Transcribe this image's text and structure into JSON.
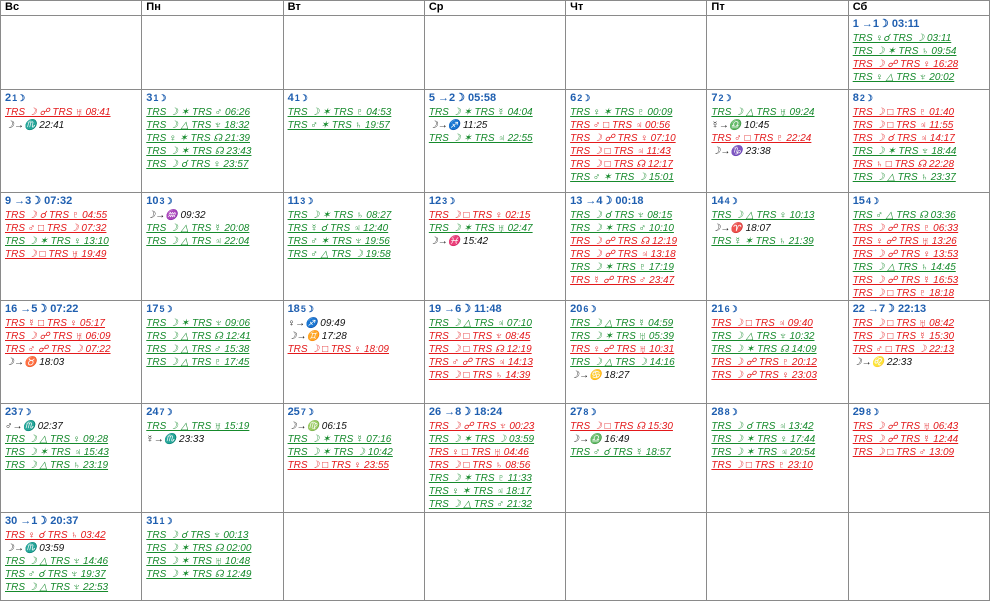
{
  "colors": {
    "red": "#e3191b",
    "green": "#168a2c",
    "blue": "#1f5fb0",
    "black": "#111111"
  },
  "weekdays": [
    "Вс",
    "Пн",
    "Вт",
    "Ср",
    "Чт",
    "Пт",
    "Сб"
  ],
  "weeks": [
    [
      null,
      null,
      null,
      null,
      null,
      null,
      {
        "day": "1",
        "ingress": "→1☽ 03:11",
        "events": [
          {
            "text": "TRS ♀☌ TRS ☽ 03:11",
            "color": "green"
          },
          {
            "text": "TRS ☽ ✶ TRS ♄ 09:54",
            "color": "green"
          },
          {
            "text": "TRS ☽ ☍ TRS ♀ 16:28",
            "color": "red"
          },
          {
            "text": "TRS ♀ △ TRS ♆ 20:02",
            "color": "green"
          }
        ]
      }
    ],
    [
      {
        "day": "2",
        "phase": "1☽",
        "events": [
          {
            "text": "TRS ☽ ☍ TRS ♅ 08:41",
            "color": "red"
          },
          {
            "text": "☽→♏ 22:41",
            "color": "black"
          }
        ]
      },
      {
        "day": "3",
        "phase": "1☽",
        "events": [
          {
            "text": "TRS ☽ ✶ TRS ♂ 06:26",
            "color": "green"
          },
          {
            "text": "TRS ☽ △ TRS ♆ 18:32",
            "color": "green"
          },
          {
            "text": "TRS ♀ ✶ TRS ☊ 21:39",
            "color": "green"
          },
          {
            "text": "TRS ☽ ✶ TRS ☊ 23:43",
            "color": "green"
          },
          {
            "text": "TRS ☽ ☌ TRS ♀ 23:57",
            "color": "green"
          }
        ]
      },
      {
        "day": "4",
        "phase": "1☽",
        "events": [
          {
            "text": "TRS ☽ ✶ TRS ♇ 04:53",
            "color": "green"
          },
          {
            "text": "TRS ♂ ✶ TRS ♄ 19:57",
            "color": "green"
          }
        ]
      },
      {
        "day": "5",
        "ingress": "→2☽ 05:58",
        "events": [
          {
            "text": "TRS ☽ ✶ TRS ☿ 04:04",
            "color": "green"
          },
          {
            "text": "☽→♐ 11:25",
            "color": "black"
          },
          {
            "text": "TRS ☽ ✶ TRS ♃ 22:55",
            "color": "green"
          }
        ]
      },
      {
        "day": "6",
        "phase": "2☽",
        "events": [
          {
            "text": "TRS ♀ ✶ TRS ♇ 00:09",
            "color": "green"
          },
          {
            "text": "TRS ♂ □ TRS ♃ 00:56",
            "color": "red"
          },
          {
            "text": "TRS ☽ ☍ TRS ♀ 07:10",
            "color": "red"
          },
          {
            "text": "TRS ☽ □ TRS ♃ 11:43",
            "color": "red"
          },
          {
            "text": "TRS ☽ □ TRS ☊ 12:17",
            "color": "red"
          },
          {
            "text": "TRS ♂ ✶ TRS ☽ 15:01",
            "color": "green"
          }
        ]
      },
      {
        "day": "7",
        "phase": "2☽",
        "events": [
          {
            "text": "TRS ☽ △ TRS ♅ 09:24",
            "color": "green"
          },
          {
            "text": "☿→♎ 10:45",
            "color": "black"
          },
          {
            "text": "TRS ♂ □ TRS ♇ 22:24",
            "color": "red"
          },
          {
            "text": "☽→♑ 23:38",
            "color": "black"
          }
        ]
      },
      {
        "day": "8",
        "phase": "2☽",
        "events": [
          {
            "text": "TRS ☽ □ TRS ♇ 01:40",
            "color": "red"
          },
          {
            "text": "TRS ☽ □ TRS ♃ 11:55",
            "color": "red"
          },
          {
            "text": "TRS ☽ ☌ TRS ♃ 14:17",
            "color": "red"
          },
          {
            "text": "TRS ☽ ✶ TRS ♆ 18:44",
            "color": "green"
          },
          {
            "text": "TRS ♄ □ TRS ☊ 22:28",
            "color": "red"
          },
          {
            "text": "TRS ☽ △ TRS ♄ 23:37",
            "color": "green"
          }
        ]
      }
    ],
    [
      {
        "day": "9",
        "ingress": "→3☽ 07:32",
        "events": [
          {
            "text": "TRS ☽ ☌ TRS ♇ 04:55",
            "color": "red"
          },
          {
            "text": "TRS ♂ □ TRS ☽ 07:32",
            "color": "red"
          },
          {
            "text": "TRS ☽ ✶ TRS ♀ 13:10",
            "color": "green"
          },
          {
            "text": "TRS ☽ □ TRS ♅ 19:49",
            "color": "red"
          }
        ]
      },
      {
        "day": "10",
        "phase": "3☽",
        "events": [
          {
            "text": "☽→♒ 09:32",
            "color": "black"
          },
          {
            "text": "TRS ☽ △ TRS ☿ 20:08",
            "color": "green"
          },
          {
            "text": "TRS ☽ △ TRS ♃ 22:04",
            "color": "green"
          }
        ]
      },
      {
        "day": "11",
        "phase": "3☽",
        "events": [
          {
            "text": "TRS ☽ ✶ TRS ♄ 08:27",
            "color": "green"
          },
          {
            "text": "TRS ☿ ☌ TRS ♃ 12:40",
            "color": "green"
          },
          {
            "text": "TRS ♂ ✶ TRS ♆ 19:56",
            "color": "green"
          },
          {
            "text": "TRS ♂ △ TRS ☽ 19:58",
            "color": "green"
          }
        ]
      },
      {
        "day": "12",
        "phase": "3☽",
        "events": [
          {
            "text": "TRS ☽ □ TRS ♀ 02:15",
            "color": "red"
          },
          {
            "text": "TRS ☽ ✶ TRS ♅ 02:47",
            "color": "green"
          },
          {
            "text": "☽→♓ 15:42",
            "color": "black"
          }
        ]
      },
      {
        "day": "13",
        "ingress": "→4☽ 00:18",
        "events": [
          {
            "text": "TRS ☽ ☌ TRS ♆ 08:15",
            "color": "green"
          },
          {
            "text": "TRS ☽ ✶ TRS ♂ 10:10",
            "color": "green"
          },
          {
            "text": "TRS ☽ ☍ TRS ☊ 12:19",
            "color": "red"
          },
          {
            "text": "TRS ☽ ☍ TRS ♃ 13:18",
            "color": "red"
          },
          {
            "text": "TRS ☽ ✶ TRS ♇ 17:19",
            "color": "green"
          },
          {
            "text": "TRS ☿ ☍ TRS ♂ 23:47",
            "color": "red"
          }
        ]
      },
      {
        "day": "14",
        "phase": "4☽",
        "events": [
          {
            "text": "TRS ☽ △ TRS ♀ 10:13",
            "color": "green"
          },
          {
            "text": "☽→♈ 18:07",
            "color": "black"
          },
          {
            "text": "TRS ☿ ✶ TRS ♄ 21:39",
            "color": "green"
          }
        ]
      },
      {
        "day": "15",
        "phase": "4☽",
        "events": [
          {
            "text": "TRS ♂ △ TRS ☊ 03:36",
            "color": "green"
          },
          {
            "text": "TRS ☽ ☍ TRS ♇ 06:33",
            "color": "red"
          },
          {
            "text": "TRS ♀ ☍ TRS ♅ 13:26",
            "color": "red"
          },
          {
            "text": "TRS ☽ ☍ TRS ♀ 13:53",
            "color": "red"
          },
          {
            "text": "TRS ☽ △ TRS ♄ 14:45",
            "color": "green"
          },
          {
            "text": "TRS ☽ ☍ TRS ☿ 16:53",
            "color": "red"
          },
          {
            "text": "TRS ☽ □ TRS ♇ 18:18",
            "color": "red"
          }
        ]
      }
    ],
    [
      {
        "day": "16",
        "ingress": "→5☽ 07:22",
        "events": [
          {
            "text": "TRS ☿ □ TRS ♀ 05:17",
            "color": "red"
          },
          {
            "text": "TRS ☽ ☍ TRS ♅ 06:09",
            "color": "red"
          },
          {
            "text": "TRS ♂ ☍ TRS ☽ 07:22",
            "color": "red"
          },
          {
            "text": "☽→♉ 18:03",
            "color": "black"
          }
        ]
      },
      {
        "day": "17",
        "phase": "5☽",
        "events": [
          {
            "text": "TRS ☽ ✶ TRS ♆ 09:06",
            "color": "green"
          },
          {
            "text": "TRS ☽ △ TRS ☊ 12:41",
            "color": "green"
          },
          {
            "text": "TRS ☽ △ TRS ♂ 15:38",
            "color": "green"
          },
          {
            "text": "TRS ☽ △ TRS ♇ 17:45",
            "color": "green"
          }
        ]
      },
      {
        "day": "18",
        "phase": "5☽",
        "events": [
          {
            "text": "♀→♐ 09:49",
            "color": "black"
          },
          {
            "text": "☽→♊ 17:28",
            "color": "black"
          },
          {
            "text": "TRS ☽ □ TRS ♀ 18:09",
            "color": "red"
          }
        ]
      },
      {
        "day": "19",
        "ingress": "→6☽ 11:48",
        "events": [
          {
            "text": "TRS ☽ △ TRS ♃ 07:10",
            "color": "green"
          },
          {
            "text": "TRS ☽ □ TRS ♆ 08:45",
            "color": "red"
          },
          {
            "text": "TRS ☽ □ TRS ☊ 12:19",
            "color": "red"
          },
          {
            "text": "TRS ♂ ☍ TRS ♃ 14:13",
            "color": "red"
          },
          {
            "text": "TRS ☽ □ TRS ♄ 14:39",
            "color": "red"
          }
        ]
      },
      {
        "day": "20",
        "phase": "6☽",
        "events": [
          {
            "text": "TRS ☽ △ TRS ☿ 04:59",
            "color": "green"
          },
          {
            "text": "TRS ☽ ✶ TRS ♅ 05:39",
            "color": "green"
          },
          {
            "text": "TRS ♀ ☍ TRS ♅ 10:31",
            "color": "red"
          },
          {
            "text": "TRS ☽ △ TRS ☽ 14:16",
            "color": "green"
          },
          {
            "text": "☽→♋ 18:27",
            "color": "black"
          }
        ]
      },
      {
        "day": "21",
        "phase": "6☽",
        "events": [
          {
            "text": "TRS ☽ □ TRS ♃ 09:40",
            "color": "red"
          },
          {
            "text": "TRS ☽ △ TRS ♆ 10:32",
            "color": "green"
          },
          {
            "text": "TRS ☽ ✶ TRS ☊ 14:09",
            "color": "green"
          },
          {
            "text": "TRS ☽ ☍ TRS ♇ 20:12",
            "color": "red"
          },
          {
            "text": "TRS ☽ ☍ TRS ♀ 23:03",
            "color": "red"
          }
        ]
      },
      {
        "day": "22",
        "ingress": "→7☽ 22:13",
        "events": [
          {
            "text": "TRS ☽ □ TRS ♅ 08:42",
            "color": "red"
          },
          {
            "text": "TRS ☽ □ TRS ☿ 15:30",
            "color": "red"
          },
          {
            "text": "TRS ♂ □ TRS ☽ 22:13",
            "color": "red"
          },
          {
            "text": "☽→♌ 22:33",
            "color": "black"
          }
        ]
      }
    ],
    [
      {
        "day": "23",
        "phase": "7☽",
        "events": [
          {
            "text": "♂→♏ 02:37",
            "color": "black"
          },
          {
            "text": "TRS ☽ △ TRS ♀ 09:28",
            "color": "green"
          },
          {
            "text": "TRS ☽ ✶ TRS ♃ 15:43",
            "color": "green"
          },
          {
            "text": "TRS ☽ △ TRS ♄ 23:19",
            "color": "green"
          }
        ]
      },
      {
        "day": "24",
        "phase": "7☽",
        "events": [
          {
            "text": "TRS ☽ △ TRS ♅ 15:19",
            "color": "green"
          },
          {
            "text": "☿→♏ 23:33",
            "color": "black"
          }
        ]
      },
      {
        "day": "25",
        "phase": "7☽",
        "events": [
          {
            "text": "☽→♍ 06:15",
            "color": "black"
          },
          {
            "text": "TRS ☽ ✶ TRS ☿ 07:16",
            "color": "green"
          },
          {
            "text": "TRS ☽ ✶ TRS ☽ 10:42",
            "color": "green"
          },
          {
            "text": "TRS ☽ □ TRS ♀ 23:55",
            "color": "red"
          }
        ]
      },
      {
        "day": "26",
        "ingress": "→8☽ 18:24",
        "events": [
          {
            "text": "TRS ☽ ☍ TRS ♆ 00:23",
            "color": "red"
          },
          {
            "text": "TRS ☽ ✶ TRS ☽ 03:59",
            "color": "green"
          },
          {
            "text": "TRS ♀ □ TRS ♅ 04:46",
            "color": "red"
          },
          {
            "text": "TRS ☽ □ TRS ♄ 08:56",
            "color": "red"
          },
          {
            "text": "TRS ☽ ✶ TRS ♇ 11:33",
            "color": "green"
          },
          {
            "text": "TRS ♀ ✶ TRS ♃ 18:17",
            "color": "green"
          },
          {
            "text": "TRS ☽ △ TRS ♂ 21:32",
            "color": "green"
          }
        ]
      },
      {
        "day": "27",
        "phase": "8☽",
        "events": [
          {
            "text": "TRS ☽ □ TRS ☊ 15:30",
            "color": "red"
          },
          {
            "text": "☽→♎ 16:49",
            "color": "black"
          },
          {
            "text": "TRS ♂ ☌ TRS ☿ 18:57",
            "color": "green"
          }
        ]
      },
      {
        "day": "28",
        "phase": "8☽",
        "events": [
          {
            "text": "TRS ☽ ☌ TRS ♃ 13:42",
            "color": "green"
          },
          {
            "text": "TRS ☽ ✶ TRS ♀ 17:44",
            "color": "green"
          },
          {
            "text": "TRS ☽ ✶ TRS ♃ 20:54",
            "color": "green"
          },
          {
            "text": "TRS ☽ □ TRS ♇ 23:10",
            "color": "red"
          }
        ]
      },
      {
        "day": "29",
        "phase": "8☽",
        "events": [
          {
            "text": "TRS ☽ ☍ TRS ♅ 06:43",
            "color": "red"
          },
          {
            "text": "TRS ☽ ☍ TRS ☿ 12:44",
            "color": "red"
          },
          {
            "text": "TRS ☽ □ TRS ♂ 13:09",
            "color": "red"
          }
        ]
      }
    ],
    [
      {
        "day": "30",
        "ingress": "→1☽ 20:37",
        "events": [
          {
            "text": "TRS ♀ ☌ TRS ♄ 03:42",
            "color": "red"
          },
          {
            "text": "☽→♏ 03:59",
            "color": "black"
          },
          {
            "text": "TRS ☽ △ TRS ♆ 14:46",
            "color": "green"
          },
          {
            "text": "TRS ♂ ☌ TRS ♆ 19:37",
            "color": "green"
          },
          {
            "text": "TRS ☽ △ TRS ♆ 22:53",
            "color": "green"
          }
        ]
      },
      {
        "day": "31",
        "phase": "1☽",
        "events": [
          {
            "text": "TRS ☽ ☌ TRS ♆ 00:13",
            "color": "green"
          },
          {
            "text": "TRS ☽ ✶ TRS ☊ 02:00",
            "color": "green"
          },
          {
            "text": "TRS ☽ ✶ TRS ♅ 10:48",
            "color": "green"
          },
          {
            "text": "TRS ☽ ✶ TRS ☊ 12:49",
            "color": "green"
          }
        ]
      },
      null,
      null,
      null,
      null,
      null
    ]
  ]
}
